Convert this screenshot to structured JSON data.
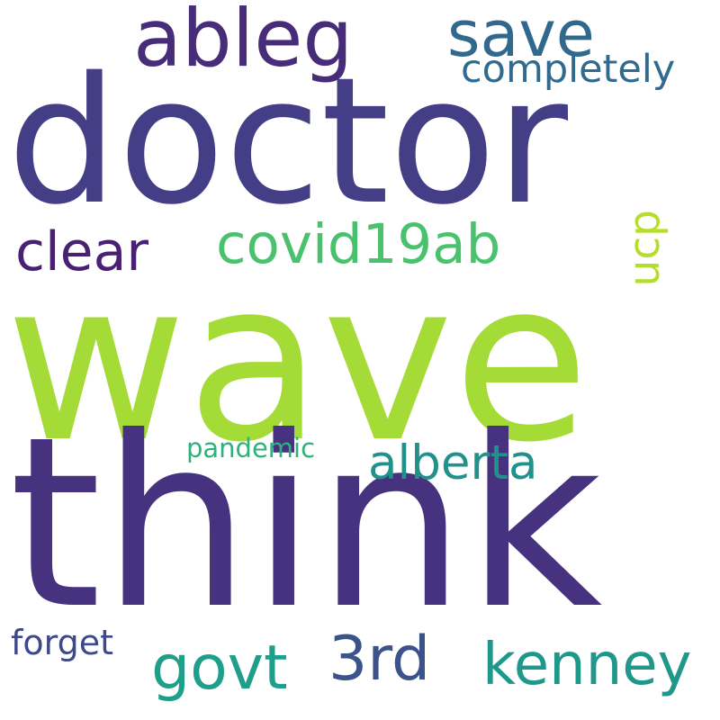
{
  "words": [
    {
      "text": "wave",
      "color": "#a5db36"
    },
    {
      "text": "think",
      "color": "#46327e"
    },
    {
      "text": "doctor",
      "color": "#433e85"
    },
    {
      "text": "ableg",
      "color": "#472c7a"
    },
    {
      "text": "save",
      "color": "#31688e"
    },
    {
      "text": "completely",
      "color": "#306a8e"
    },
    {
      "text": "clear",
      "color": "#482173"
    },
    {
      "text": "covid19ab",
      "color": "#4ac16d"
    },
    {
      "text": "ucp",
      "color": "#b5de2b"
    },
    {
      "text": "alberta",
      "color": "#21918c"
    },
    {
      "text": "pandemic",
      "color": "#2db27d"
    },
    {
      "text": "govt",
      "color": "#1f9e89"
    },
    {
      "text": "3rd",
      "color": "#3b528b"
    },
    {
      "text": "kenney",
      "color": "#1f988b"
    },
    {
      "text": "forget",
      "color": "#3e4989"
    }
  ]
}
